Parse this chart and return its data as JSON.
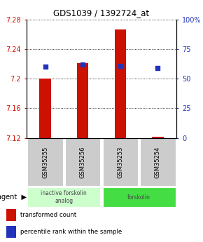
{
  "title": "GDS1039 / 1392724_at",
  "samples": [
    "GSM35255",
    "GSM35256",
    "GSM35253",
    "GSM35254"
  ],
  "bar_values": [
    7.2,
    7.221,
    7.266,
    7.122
  ],
  "bar_base": 7.12,
  "percentile_values": [
    60,
    62,
    61,
    59
  ],
  "bar_color": "#cc1100",
  "percentile_color": "#2233bb",
  "ylim_left": [
    7.12,
    7.28
  ],
  "ylim_right": [
    0,
    100
  ],
  "yticks_left": [
    7.12,
    7.16,
    7.2,
    7.24,
    7.28
  ],
  "ytick_labels_left": [
    "7.12",
    "7.16",
    "7.2",
    "7.24",
    "7.28"
  ],
  "yticks_right": [
    0,
    25,
    50,
    75,
    100
  ],
  "ytick_labels_right": [
    "0",
    "25",
    "50",
    "75",
    "100%"
  ],
  "agent_groups": [
    {
      "label": "inactive forskolin\nanalog",
      "color": "#ccffcc",
      "span": [
        0,
        2
      ]
    },
    {
      "label": "forskolin",
      "color": "#44dd44",
      "span": [
        2,
        4
      ]
    }
  ],
  "legend_items": [
    {
      "color": "#cc1100",
      "label": "transformed count"
    },
    {
      "color": "#2233bb",
      "label": "percentile rank within the sample"
    }
  ],
  "bar_width": 0.3,
  "figsize": [
    2.9,
    3.45
  ],
  "dpi": 100
}
